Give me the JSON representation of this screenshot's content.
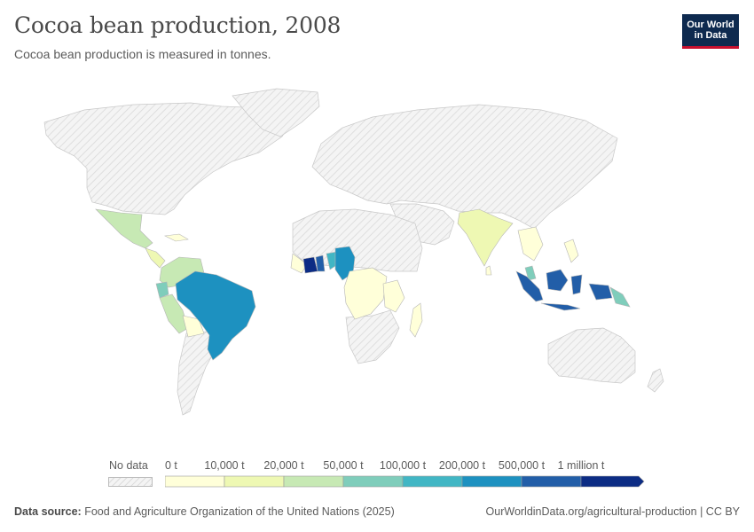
{
  "header": {
    "title": "Cocoa bean production, 2008",
    "subtitle": "Cocoa bean production is measured in tonnes.",
    "logo_line1": "Our World",
    "logo_line2": "in Data"
  },
  "legend": {
    "no_data_label": "No data",
    "bins": [
      {
        "label": "0 t",
        "color": "#ffffd9"
      },
      {
        "label": "10,000 t",
        "color": "#eef8b3"
      },
      {
        "label": "20,000 t",
        "color": "#c7e9b4"
      },
      {
        "label": "50,000 t",
        "color": "#7fcdbb"
      },
      {
        "label": "100,000 t",
        "color": "#41b6c4"
      },
      {
        "label": "200,000 t",
        "color": "#1d91c0"
      },
      {
        "label": "500,000 t",
        "color": "#225ea8"
      },
      {
        "label": "1 million t",
        "color": "#0c2c84"
      }
    ]
  },
  "footer": {
    "source_label": "Data source:",
    "source_text": "Food and Agriculture Organization of the United Nations (2025)",
    "right_text": "OurWorldinData.org/agricultural-production | CC BY"
  },
  "colors": {
    "no_data_fill": "#f2f2f2",
    "hatch": "#d8d8d8",
    "border": "#c9c9c9"
  }
}
